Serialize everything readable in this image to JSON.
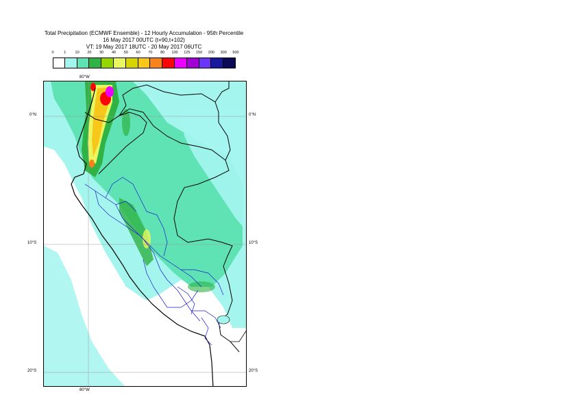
{
  "title": {
    "line1": "Total Precipitation (ECMWF Ensemble) - 12 Hourly Accumulation - 95th Percentile",
    "line2": "16 May 2017 00UTC (t+90,t+102)",
    "line3": "VT: 19 May 2017 18UTC - 20 May 2017 06UTC"
  },
  "legend": {
    "ticks": [
      "0",
      "1",
      "10",
      "20",
      "30",
      "40",
      "50",
      "60",
      "70",
      "80",
      "100",
      "125",
      "150",
      "200",
      "300",
      "500"
    ],
    "colors": [
      "#ffffff",
      "#a5f5ef",
      "#5fe3b5",
      "#30b244",
      "#95d600",
      "#eaf65f",
      "#d7d400",
      "#f7c71a",
      "#f7841b",
      "#fa0407",
      "#eb00ff",
      "#a101d3",
      "#6b36f8",
      "#17199f",
      "#0b0a55"
    ]
  },
  "axes": {
    "lon_top": "80°W",
    "lon_bottom": "80°W",
    "lat_left": [
      "0°N",
      "10°S",
      "20°S"
    ],
    "lat_right": [
      "0°N",
      "10°S",
      "20°S"
    ]
  }
}
